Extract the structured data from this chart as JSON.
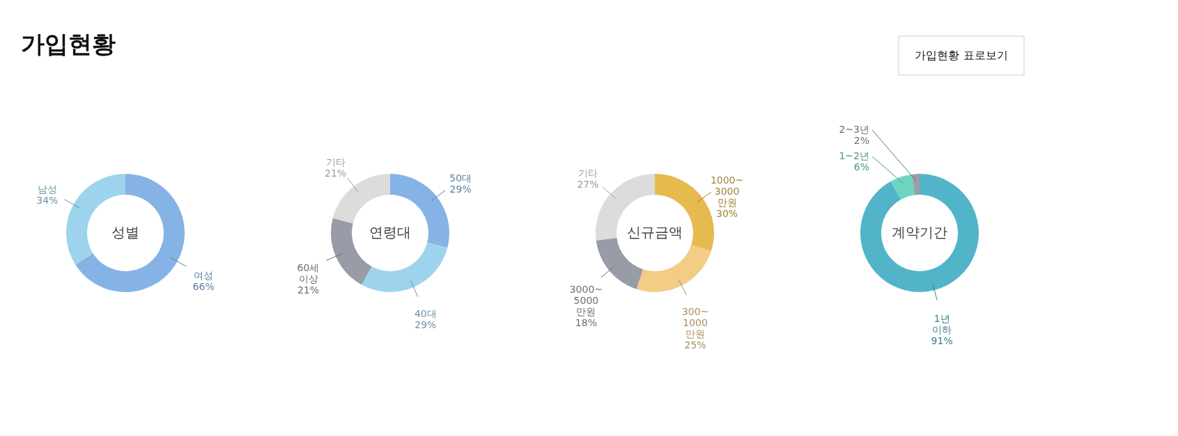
{
  "chart_data": [
    {
      "type": "other",
      "title": "가입현황",
      "annotations": [
        "가입현황 표로보기"
      ]
    },
    {
      "type": "donut",
      "title": "성별",
      "categories": [
        "여성",
        "남성"
      ],
      "values": [
        66,
        34
      ],
      "colors": [
        "#85b3e6",
        "#9dd3ec"
      ],
      "value_labels": [
        "66%",
        "34%"
      ]
    },
    {
      "type": "donut",
      "title": "연령대",
      "categories": [
        "50대",
        "40대",
        "60세 이상",
        "기타"
      ],
      "values": [
        29,
        29,
        21,
        21
      ],
      "colors": [
        "#85b3e6",
        "#9dd3ec",
        "#979ca6",
        "#dcdcdc"
      ],
      "value_labels": [
        "29%",
        "29%",
        "21%",
        "21%"
      ]
    },
    {
      "type": "donut",
      "title": "신규금액",
      "categories": [
        "1000~ 3000 만원",
        "300~ 1000 만원",
        "3000~ 5000 만원",
        "기타"
      ],
      "values": [
        30,
        25,
        18,
        27
      ],
      "colors": [
        "#e6ba4e",
        "#f3cc85",
        "#979ca6",
        "#dcdcdc"
      ],
      "value_labels": [
        "30%",
        "25%",
        "18%",
        "27%"
      ]
    },
    {
      "type": "donut",
      "title": "계약기간",
      "categories": [
        "1년 이하",
        "1~2년",
        "2~3년"
      ],
      "values": [
        91,
        6,
        2
      ],
      "colors": [
        "#52b4c8",
        "#6dd5bf",
        "#9a9ea6"
      ],
      "value_labels": [
        "91%",
        "6%",
        "2%"
      ]
    }
  ]
}
